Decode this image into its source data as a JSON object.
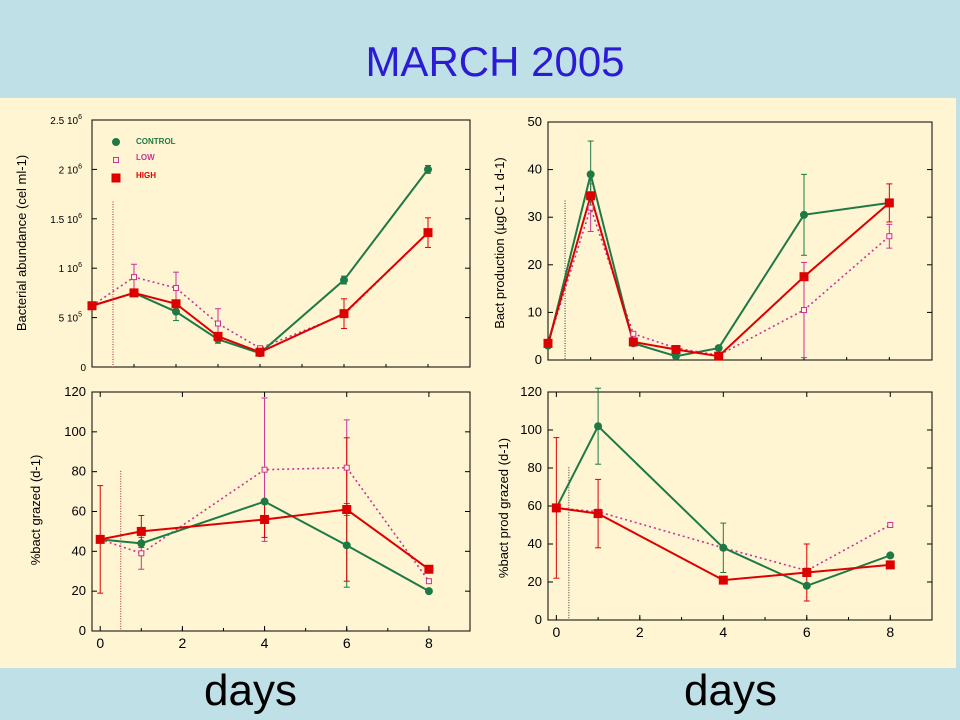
{
  "title": "MARCH 2005",
  "xlabel_left": "days",
  "xlabel_right": "days",
  "colors": {
    "control": "#1e7a45",
    "low": "#c8329a",
    "high": "#dd0000"
  },
  "chart_data": [
    {
      "type": "line",
      "ylabel": "Bacterial abundance (cel ml-1)",
      "xlim": [
        0,
        9
      ],
      "ylim": [
        0,
        2500000
      ],
      "xticks": [],
      "yticks": [
        {
          "v": 0,
          "m": "0",
          "e": ""
        },
        {
          "v": 500000,
          "m": "5 10",
          "e": "5"
        },
        {
          "v": 1000000,
          "m": "1 10",
          "e": "6"
        },
        {
          "v": 1500000,
          "m": "1.5 10",
          "e": "6"
        },
        {
          "v": 2000000,
          "m": "2 10",
          "e": "6"
        },
        {
          "v": 2500000,
          "m": "2.5 10",
          "e": "6"
        }
      ],
      "vline_x": 0.5,
      "legend": [
        {
          "series": "control",
          "label": "CONTROL"
        },
        {
          "series": "low",
          "label": "LOW"
        },
        {
          "series": "high",
          "label": "HIGH"
        }
      ],
      "series": [
        {
          "name": "CONTROL",
          "key": "control",
          "x": [
            0,
            1,
            2,
            3,
            4,
            6,
            8
          ],
          "y": [
            620000,
            750000,
            560000,
            280000,
            140000,
            880000,
            2000000
          ],
          "err": [
            0,
            0,
            90000,
            40000,
            20000,
            40000,
            40000
          ]
        },
        {
          "name": "LOW",
          "key": "low",
          "x": [
            0,
            1,
            2,
            3,
            4,
            6,
            8
          ],
          "y": [
            620000,
            910000,
            800000,
            440000,
            190000,
            530000,
            1360000
          ],
          "err": [
            0,
            130000,
            160000,
            150000,
            20000,
            0,
            0
          ]
        },
        {
          "name": "HIGH",
          "key": "high",
          "x": [
            0,
            1,
            2,
            3,
            4,
            6,
            8
          ],
          "y": [
            620000,
            750000,
            640000,
            310000,
            150000,
            540000,
            1360000
          ],
          "err": [
            0,
            0,
            0,
            0,
            0,
            150000,
            150000
          ]
        }
      ]
    },
    {
      "type": "line",
      "ylabel": "Bact production (µgC L-1 d-1)",
      "xlim": [
        0,
        9
      ],
      "ylim": [
        0,
        50
      ],
      "xticks": [],
      "yticks": [
        {
          "v": 0,
          "m": "0"
        },
        {
          "v": 10,
          "m": "10"
        },
        {
          "v": 20,
          "m": "20"
        },
        {
          "v": 30,
          "m": "30"
        },
        {
          "v": 40,
          "m": "40"
        },
        {
          "v": 50,
          "m": "50"
        }
      ],
      "vline_x": 0.4,
      "series": [
        {
          "name": "CONTROL",
          "key": "control",
          "x": [
            0,
            1,
            2,
            3,
            4,
            6,
            8
          ],
          "y": [
            3,
            39,
            3.5,
            0.8,
            2.5,
            30.5,
            33
          ],
          "err": [
            0,
            7,
            0,
            0,
            0,
            8.5,
            0
          ]
        },
        {
          "name": "LOW",
          "key": "low",
          "x": [
            0,
            1,
            2,
            3,
            4,
            6,
            8
          ],
          "y": [
            3.5,
            32,
            5.5,
            2.5,
            1,
            10.5,
            26
          ],
          "err": [
            0,
            5,
            0,
            0,
            0,
            10,
            2.5
          ]
        },
        {
          "name": "HIGH",
          "key": "high",
          "x": [
            0,
            1,
            2,
            3,
            4,
            6,
            8
          ],
          "y": [
            3.5,
            34.5,
            3.8,
            2.2,
            0.8,
            17.5,
            33
          ],
          "err": [
            0,
            0,
            0,
            0,
            0,
            0,
            4
          ]
        }
      ]
    },
    {
      "type": "line",
      "ylabel": "%bact grazed (d-1)",
      "xlim": [
        -0.2,
        9
      ],
      "ylim": [
        0,
        120
      ],
      "xticks": [
        {
          "v": 0,
          "m": "0"
        },
        {
          "v": 2,
          "m": "2"
        },
        {
          "v": 4,
          "m": "4"
        },
        {
          "v": 6,
          "m": "6"
        },
        {
          "v": 8,
          "m": "8"
        }
      ],
      "yticks": [
        {
          "v": 0,
          "m": "0"
        },
        {
          "v": 20,
          "m": "20"
        },
        {
          "v": 40,
          "m": "40"
        },
        {
          "v": 60,
          "m": "60"
        },
        {
          "v": 80,
          "m": "80"
        },
        {
          "v": 100,
          "m": "100"
        },
        {
          "v": 120,
          "m": "120"
        }
      ],
      "vline_x": 0.5,
      "series": [
        {
          "name": "CONTROL",
          "key": "control",
          "x": [
            0,
            1,
            4,
            6,
            8
          ],
          "y": [
            46,
            44,
            65,
            43,
            20
          ],
          "err": [
            0,
            0,
            0,
            21,
            0
          ]
        },
        {
          "name": "LOW",
          "key": "low",
          "x": [
            0,
            1,
            4,
            6,
            8
          ],
          "y": [
            46,
            39,
            81,
            82,
            25
          ],
          "err": [
            0,
            8,
            36,
            24,
            0
          ]
        },
        {
          "name": "HIGH",
          "key": "high",
          "x": [
            0,
            1,
            4,
            6,
            8
          ],
          "y": [
            46,
            50,
            56,
            61,
            31
          ],
          "err": [
            27,
            8,
            9,
            36,
            0
          ]
        }
      ]
    },
    {
      "type": "line",
      "ylabel": "%bact prod grazed (d-1)",
      "xlim": [
        -0.2,
        9
      ],
      "ylim": [
        0,
        120
      ],
      "xticks": [
        {
          "v": 0,
          "m": "0"
        },
        {
          "v": 2,
          "m": "2"
        },
        {
          "v": 4,
          "m": "4"
        },
        {
          "v": 6,
          "m": "6"
        },
        {
          "v": 8,
          "m": "8"
        }
      ],
      "yticks": [
        {
          "v": 0,
          "m": "0"
        },
        {
          "v": 20,
          "m": "20"
        },
        {
          "v": 40,
          "m": "40"
        },
        {
          "v": 60,
          "m": "60"
        },
        {
          "v": 80,
          "m": "80"
        },
        {
          "v": 100,
          "m": "100"
        },
        {
          "v": 120,
          "m": "120"
        }
      ],
      "vline_x": 0.3,
      "series": [
        {
          "name": "CONTROL",
          "key": "control",
          "x": [
            0,
            1,
            4,
            6,
            8
          ],
          "y": [
            59,
            102,
            38,
            18,
            34
          ],
          "err": [
            0,
            20,
            13,
            0,
            0
          ]
        },
        {
          "name": "LOW",
          "key": "low",
          "x": [
            0,
            1,
            4,
            6,
            8
          ],
          "y": [
            59,
            57,
            38,
            26,
            50
          ],
          "err": [
            0,
            0,
            0,
            0,
            0
          ]
        },
        {
          "name": "HIGH",
          "key": "high",
          "x": [
            0,
            1,
            4,
            6,
            8
          ],
          "y": [
            59,
            56,
            21,
            25,
            29
          ],
          "err": [
            37,
            18,
            0,
            15,
            0
          ]
        }
      ]
    }
  ]
}
